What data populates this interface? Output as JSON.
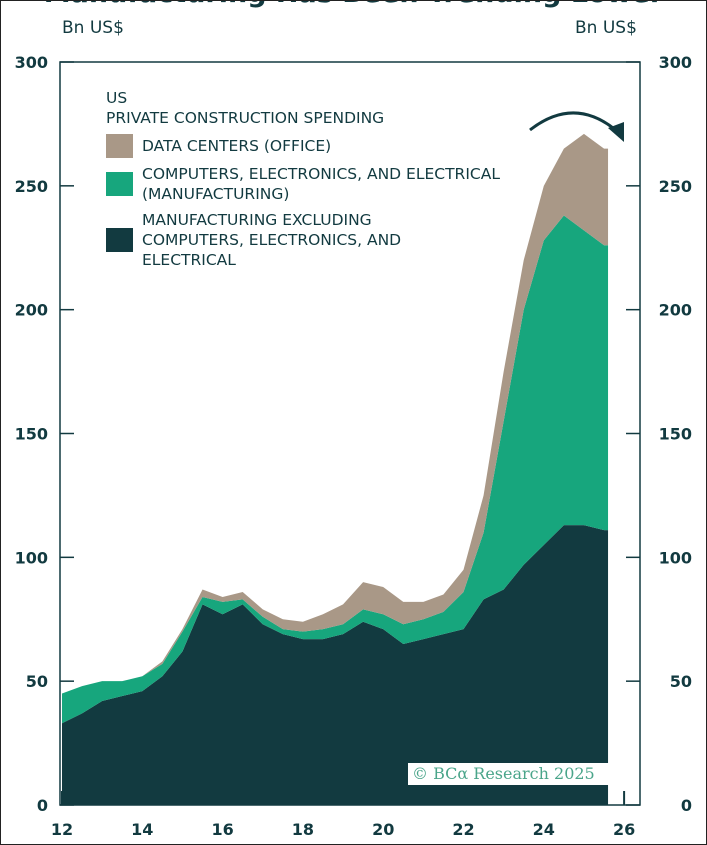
{
  "title": "Manufacturing Has Been Trending Lower",
  "chart_data": {
    "type": "area",
    "stacked": true,
    "title": "US PRIVATE CONSTRUCTION SPENDING",
    "title_lines": [
      "US",
      "PRIVATE CONSTRUCTION SPENDING"
    ],
    "ylabel_left": "Bn US$",
    "ylabel_right": "Bn US$",
    "ylim": [
      0,
      300
    ],
    "yticks": [
      0,
      50,
      100,
      150,
      200,
      250,
      300
    ],
    "xlim": [
      2012,
      2026.5
    ],
    "xticks": [
      2012,
      2014,
      2016,
      2018,
      2020,
      2022,
      2024,
      2026
    ],
    "xtick_labels": [
      "12",
      "14",
      "16",
      "18",
      "20",
      "22",
      "24",
      "26"
    ],
    "grid": false,
    "legend_position": "top-left",
    "x": [
      2012,
      2012.5,
      2013,
      2013.5,
      2014,
      2014.5,
      2015,
      2015.5,
      2016,
      2016.5,
      2017,
      2017.5,
      2018,
      2018.5,
      2019,
      2019.5,
      2020,
      2020.5,
      2021,
      2021.5,
      2022,
      2022.5,
      2023,
      2023.5,
      2024,
      2024.5,
      2025,
      2025.5
    ],
    "series": [
      {
        "name": "MANUFACTURING EXCLUDING COMPUTERS, ELECTRONICS, AND ELECTRICAL",
        "color": "#123a40",
        "values": [
          33,
          37,
          42,
          44,
          46,
          52,
          62,
          81,
          77,
          81,
          73,
          69,
          67,
          67,
          69,
          74,
          71,
          65,
          67,
          69,
          71,
          83,
          87,
          97,
          105,
          113,
          113,
          111
        ]
      },
      {
        "name": "COMPUTERS, ELECTRONICS, AND ELECTRICAL (MANUFACTURING)",
        "color": "#17a67d",
        "values": [
          12,
          11,
          8,
          6,
          6,
          5,
          8,
          3,
          5,
          2,
          3,
          2,
          3,
          4,
          4,
          5,
          6,
          8,
          8,
          9,
          15,
          27,
          68,
          103,
          123,
          125,
          119,
          115
        ]
      },
      {
        "name": "DATA CENTERS (OFFICE)",
        "color": "#a99887",
        "values": [
          0,
          0,
          0,
          0,
          0,
          1,
          1,
          3,
          2,
          3,
          3,
          4,
          4,
          6,
          8,
          11,
          11,
          9,
          7,
          7,
          9,
          15,
          20,
          20,
          22,
          27,
          39,
          39
        ]
      }
    ],
    "annotation": "arrow-curving-down"
  },
  "watermark": "© BCα Research 2025"
}
